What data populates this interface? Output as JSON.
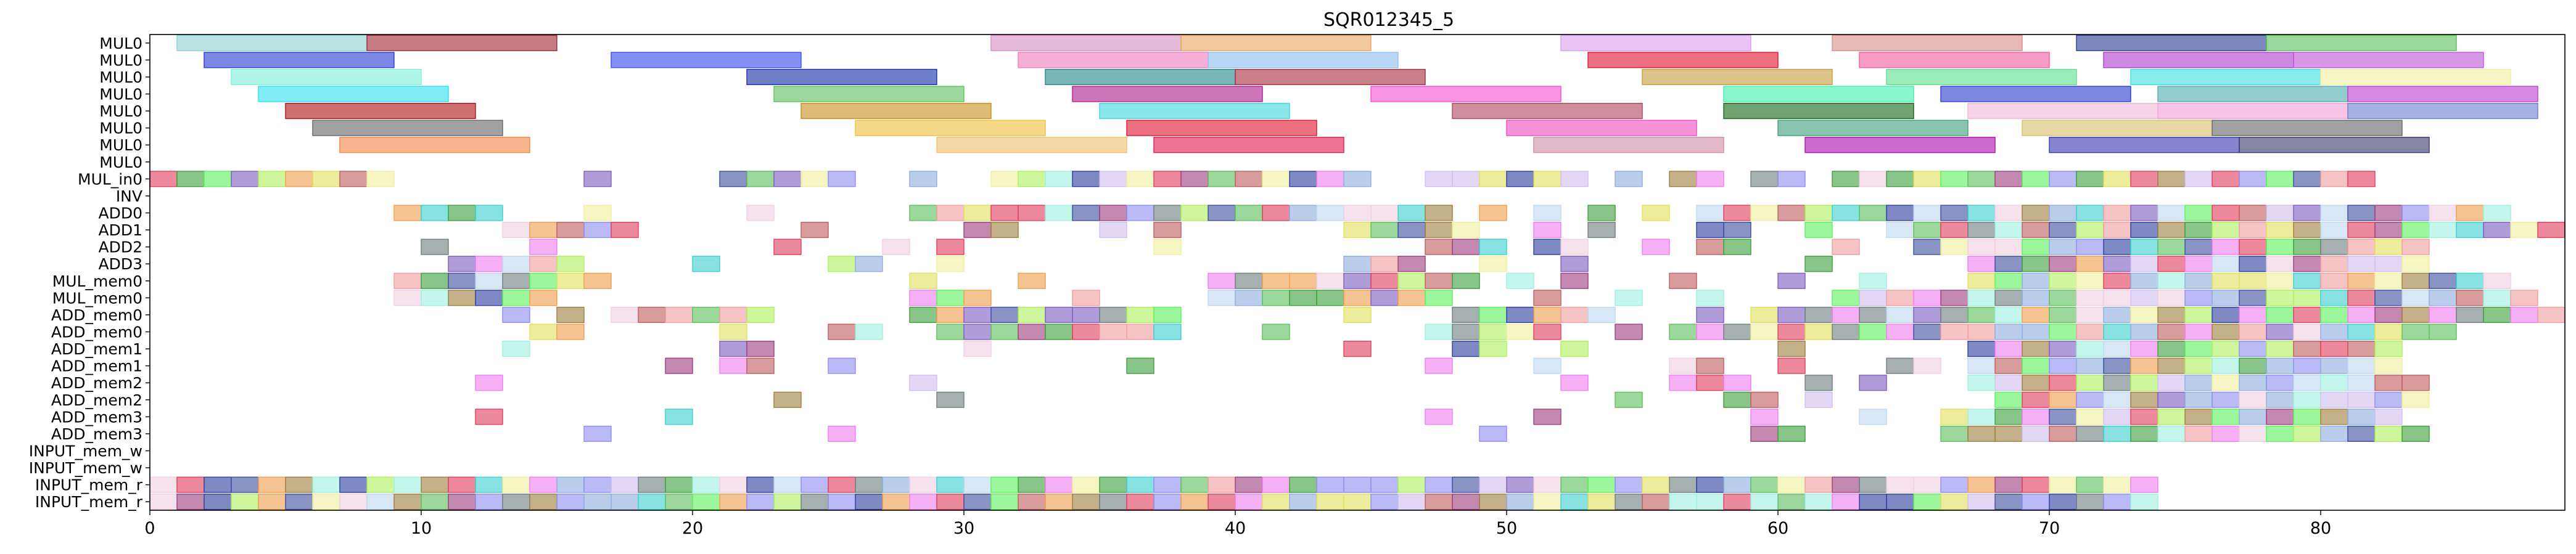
{
  "chart_data": {
    "type": "gantt",
    "title": "SQR012345_5",
    "xlabel": "",
    "ylabel": "",
    "xlim": [
      0,
      89
    ],
    "xticks": [
      0,
      10,
      20,
      30,
      40,
      50,
      60,
      70,
      80
    ],
    "grid": false,
    "legend": "none",
    "rows": [
      "MUL0",
      "MUL0",
      "MUL0",
      "MUL0",
      "MUL0",
      "MUL0",
      "MUL0",
      "MUL0",
      "MUL_in0",
      "INV",
      "ADD0",
      "ADD1",
      "ADD2",
      "ADD3",
      "MUL_mem0",
      "MUL_mem0",
      "ADD_mem0",
      "ADD_mem0",
      "ADD_mem1",
      "ADD_mem1",
      "ADD_mem2",
      "ADD_mem2",
      "ADD_mem3",
      "ADD_mem3",
      "INPUT_mem_w",
      "INPUT_mem_w",
      "INPUT_mem_r",
      "INPUT_mem_r"
    ],
    "long_tasks": [
      {
        "row": 0,
        "start": 1,
        "end": 8,
        "color": "#8fd3d3"
      },
      {
        "row": 0,
        "start": 8,
        "end": 15,
        "color": "#a52a3a"
      },
      {
        "row": 0,
        "start": 31,
        "end": 38,
        "color": "#d88fc4"
      },
      {
        "row": 0,
        "start": 38,
        "end": 45,
        "color": "#e8a860"
      },
      {
        "row": 0,
        "start": 52,
        "end": 59,
        "color": "#dda0f0"
      },
      {
        "row": 0,
        "start": 62,
        "end": 69,
        "color": "#d8908a"
      },
      {
        "row": 0,
        "start": 71,
        "end": 78,
        "color": "#2e3f9a"
      },
      {
        "row": 0,
        "start": 78,
        "end": 85,
        "color": "#5cc060"
      },
      {
        "row": 1,
        "start": 2,
        "end": 9,
        "color": "#2a3fd0"
      },
      {
        "row": 1,
        "start": 17,
        "end": 24,
        "color": "#3c4ef0"
      },
      {
        "row": 1,
        "start": 32,
        "end": 39,
        "color": "#f080c0"
      },
      {
        "row": 1,
        "start": 39,
        "end": 46,
        "color": "#90c0f0"
      },
      {
        "row": 1,
        "start": 53,
        "end": 60,
        "color": "#e01830"
      },
      {
        "row": 1,
        "start": 63,
        "end": 70,
        "color": "#f060a0"
      },
      {
        "row": 1,
        "start": 72,
        "end": 79,
        "color": "#b040d0"
      },
      {
        "row": 1,
        "start": 79,
        "end": 86,
        "color": "#c058d8"
      },
      {
        "row": 2,
        "start": 3,
        "end": 10,
        "color": "#80f0d8"
      },
      {
        "row": 2,
        "start": 22,
        "end": 29,
        "color": "#1a34a8"
      },
      {
        "row": 2,
        "start": 33,
        "end": 40,
        "color": "#2a8a8a"
      },
      {
        "row": 2,
        "start": 40,
        "end": 47,
        "color": "#a83040"
      },
      {
        "row": 2,
        "start": 55,
        "end": 62,
        "color": "#c8a040"
      },
      {
        "row": 2,
        "start": 64,
        "end": 71,
        "color": "#60e090"
      },
      {
        "row": 2,
        "start": 73,
        "end": 80,
        "color": "#40e0e0"
      },
      {
        "row": 2,
        "start": 80,
        "end": 87,
        "color": "#f0f0a0"
      },
      {
        "row": 3,
        "start": 4,
        "end": 11,
        "color": "#30e0f0"
      },
      {
        "row": 3,
        "start": 23,
        "end": 30,
        "color": "#60c060"
      },
      {
        "row": 3,
        "start": 34,
        "end": 41,
        "color": "#b02090"
      },
      {
        "row": 3,
        "start": 45,
        "end": 52,
        "color": "#f050d0"
      },
      {
        "row": 3,
        "start": 58,
        "end": 65,
        "color": "#40f0b0"
      },
      {
        "row": 3,
        "start": 66,
        "end": 73,
        "color": "#2a3fd0"
      },
      {
        "row": 3,
        "start": 74,
        "end": 81,
        "color": "#50b0b0"
      },
      {
        "row": 3,
        "start": 81,
        "end": 88,
        "color": "#c040d0"
      },
      {
        "row": 4,
        "start": 5,
        "end": 12,
        "color": "#b01818"
      },
      {
        "row": 4,
        "start": 24,
        "end": 31,
        "color": "#c89020"
      },
      {
        "row": 4,
        "start": 35,
        "end": 42,
        "color": "#40d8e0"
      },
      {
        "row": 4,
        "start": 48,
        "end": 55,
        "color": "#b04860"
      },
      {
        "row": 4,
        "start": 58,
        "end": 65,
        "color": "#1a6a1a"
      },
      {
        "row": 4,
        "start": 67,
        "end": 74,
        "color": "#f0b8d8"
      },
      {
        "row": 4,
        "start": 74,
        "end": 81,
        "color": "#f0a0d8"
      },
      {
        "row": 4,
        "start": 81,
        "end": 88,
        "color": "#7080d0"
      },
      {
        "row": 5,
        "start": 6,
        "end": 13,
        "color": "#686868"
      },
      {
        "row": 5,
        "start": 26,
        "end": 33,
        "color": "#f0c040"
      },
      {
        "row": 5,
        "start": 36,
        "end": 43,
        "color": "#e01830"
      },
      {
        "row": 5,
        "start": 50,
        "end": 57,
        "color": "#f050c0"
      },
      {
        "row": 5,
        "start": 60,
        "end": 67,
        "color": "#40a080"
      },
      {
        "row": 5,
        "start": 69,
        "end": 76,
        "color": "#d8c070"
      },
      {
        "row": 5,
        "start": 76,
        "end": 83,
        "color": "#686868"
      },
      {
        "row": 6,
        "start": 7,
        "end": 14,
        "color": "#f08848"
      },
      {
        "row": 6,
        "start": 29,
        "end": 36,
        "color": "#f0c070"
      },
      {
        "row": 6,
        "start": 37,
        "end": 44,
        "color": "#e02050"
      },
      {
        "row": 6,
        "start": 51,
        "end": 58,
        "color": "#d090a8"
      },
      {
        "row": 6,
        "start": 61,
        "end": 68,
        "color": "#b010b0"
      },
      {
        "row": 6,
        "start": 70,
        "end": 77,
        "color": "#3a3ab0"
      },
      {
        "row": 6,
        "start": 77,
        "end": 84,
        "color": "#3a3a70"
      }
    ],
    "cell_tasks": "unit-length (duration 1) tasks filling rows MUL_in0 through INPUT_mem_r, in varied colors"
  }
}
